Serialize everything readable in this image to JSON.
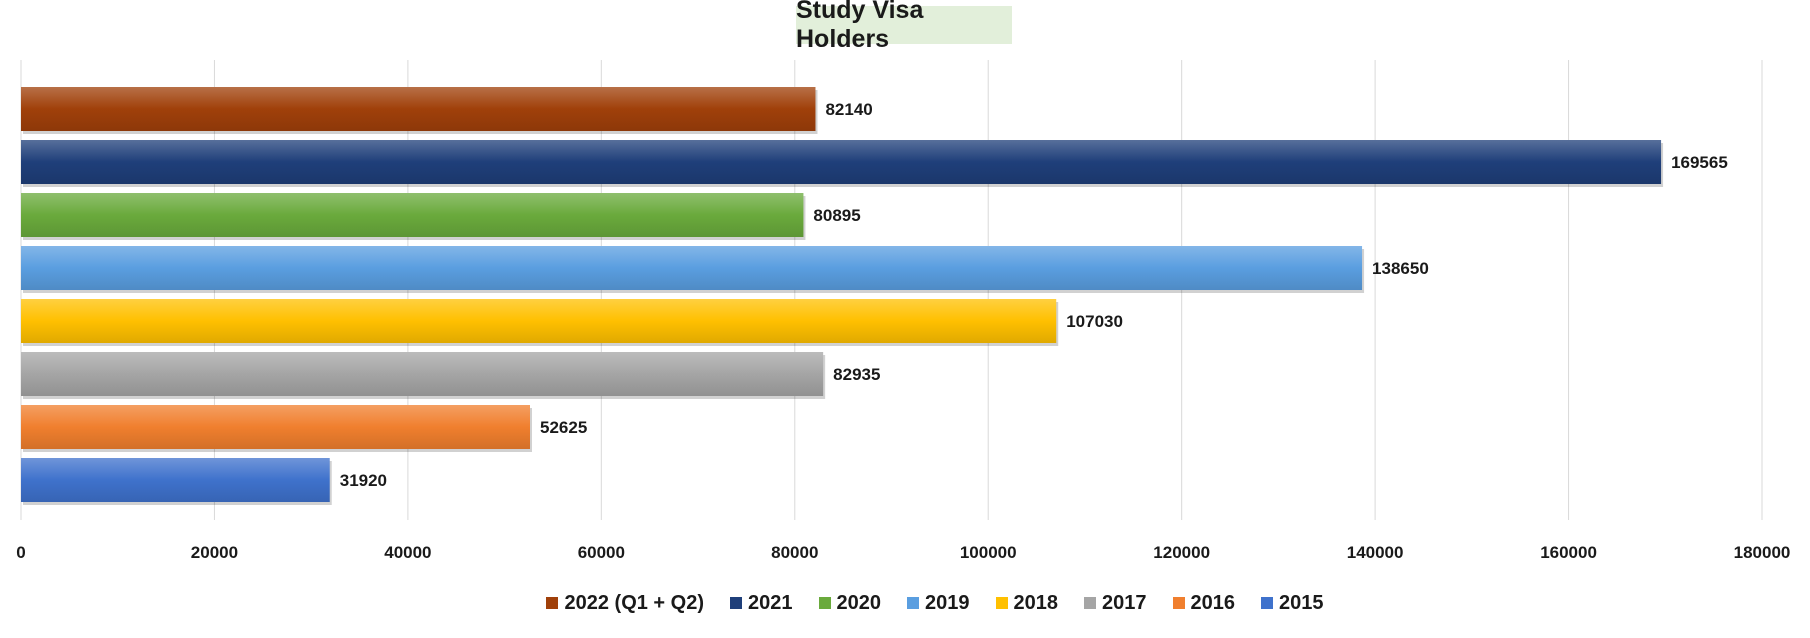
{
  "chart_data": {
    "type": "bar",
    "orientation": "horizontal",
    "title": "Study Visa Holders",
    "xlim": [
      0,
      180000
    ],
    "x_ticks": [
      "0",
      "20000",
      "40000",
      "60000",
      "80000",
      "100000",
      "120000",
      "140000",
      "160000",
      "180000"
    ],
    "grid": true,
    "legend_position": "bottom",
    "categories": [
      "2022 (Q1 + Q2)",
      "2021",
      "2020",
      "2019",
      "2018",
      "2017",
      "2016",
      "2015"
    ],
    "values": [
      82140,
      169565,
      80895,
      138650,
      107030,
      82935,
      52625,
      31920
    ],
    "value_labels": [
      "82140",
      "169565",
      "80895",
      "138650",
      "107030",
      "82935",
      "52625",
      "31920"
    ],
    "colors": [
      "#a0400a",
      "#1f3f7a",
      "#6aaa3c",
      "#5a9ee0",
      "#ffc000",
      "#a5a5a5",
      "#f07f2e",
      "#3f72cc"
    ]
  }
}
